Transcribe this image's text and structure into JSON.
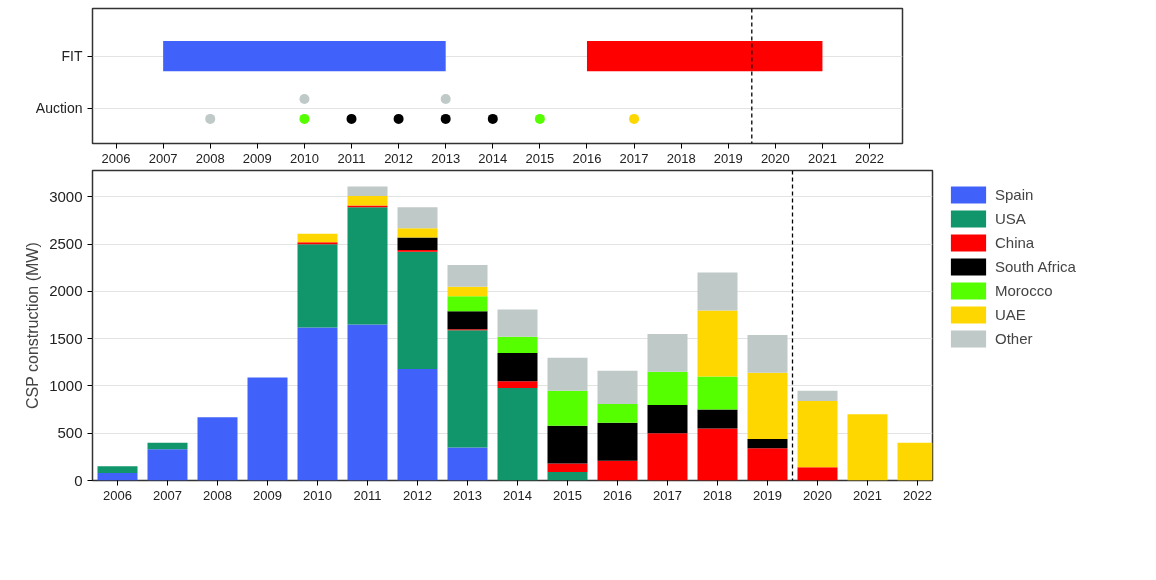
{
  "chart_data": [
    {
      "type": "bar",
      "orientation": "horizontal",
      "categories": [
        "FIT",
        "Auction"
      ],
      "xlim": [
        2005.5,
        2022.7
      ],
      "xticks": [
        2006,
        2007,
        2008,
        2009,
        2010,
        2011,
        2012,
        2013,
        2014,
        2015,
        2016,
        2017,
        2018,
        2019,
        2020,
        2021,
        2022
      ],
      "grid": "y",
      "marker": "circle",
      "ref_lines": [
        {
          "axis": "x",
          "value": 2019.5,
          "line_style": "dashed",
          "color": "#000000"
        }
      ],
      "series": [
        {
          "color": "#4062fa",
          "values": [
            6,
            null
          ],
          "base": [
            2007,
            null
          ]
        },
        {
          "color": "#ff0000",
          "values": [
            5,
            null
          ],
          "base": [
            2016,
            null
          ]
        },
        {
          "type": "scatter",
          "color": "#bfc9c7",
          "values": [
            null,
            2008
          ]
        },
        {
          "type": "scatter",
          "color": "#55ff00",
          "values": [
            null,
            2010
          ]
        },
        {
          "type": "scatter",
          "color": "#000000",
          "values": [
            null,
            2011
          ]
        },
        {
          "type": "scatter",
          "color": "#000000",
          "values": [
            null,
            2012
          ]
        },
        {
          "type": "scatter",
          "color": "#000000",
          "values": [
            null,
            2013
          ]
        },
        {
          "type": "scatter",
          "color": "#000000",
          "values": [
            null,
            2014
          ]
        },
        {
          "type": "scatter",
          "color": "#55ff00",
          "values": [
            null,
            2015
          ]
        },
        {
          "type": "scatter",
          "color": "#ffd700",
          "values": [
            null,
            2017
          ]
        },
        {
          "type": "scatter",
          "color": "#bfc9c7",
          "values": [
            null,
            2010
          ]
        },
        {
          "type": "scatter",
          "color": "#bfc9c7",
          "values": [
            null,
            2013
          ]
        }
      ]
    },
    {
      "type": "bar",
      "stacked": true,
      "ylabel": "CSP construction (MW)",
      "x": [
        2006,
        2007,
        2008,
        2009,
        2010,
        2011,
        2012,
        2013,
        2014,
        2015,
        2016,
        2017,
        2018,
        2019,
        2020,
        2021,
        2022
      ],
      "xlim": [
        2005.5,
        2022.3
      ],
      "xticks": [
        2006,
        2007,
        2008,
        2009,
        2010,
        2011,
        2012,
        2013,
        2014,
        2015,
        2016,
        2017,
        2018,
        2019,
        2020,
        2021,
        2022
      ],
      "ylim": [
        0,
        3280
      ],
      "yticks": [
        0,
        500,
        1000,
        1500,
        2000,
        2500,
        3000
      ],
      "grid": "y",
      "legend": "right",
      "ref_lines": [
        {
          "axis": "x",
          "value": 2019.5,
          "line_style": "dashed",
          "color": "#000000"
        }
      ],
      "series": [
        {
          "name": "Spain",
          "color": "#4062fa",
          "values": [
            80,
            330,
            670,
            1090,
            1620,
            1650,
            1180,
            350,
            null,
            null,
            null,
            null,
            null,
            null,
            null,
            null,
            null
          ]
        },
        {
          "name": "USA",
          "color": "#11956b",
          "values": [
            70,
            70,
            null,
            null,
            880,
            1240,
            1240,
            1240,
            980,
            90,
            null,
            null,
            null,
            null,
            null,
            null,
            null
          ]
        },
        {
          "name": "China",
          "color": "#ff0000",
          "values": [
            null,
            null,
            null,
            null,
            20,
            20,
            20,
            10,
            70,
            90,
            210,
            500,
            550,
            340,
            140,
            null,
            null
          ]
        },
        {
          "name": "South Africa",
          "color": "#000000",
          "values": [
            null,
            null,
            null,
            null,
            null,
            null,
            130,
            190,
            300,
            400,
            400,
            300,
            200,
            100,
            null,
            null,
            null
          ]
        },
        {
          "name": "Morocco",
          "color": "#55ff00",
          "values": [
            null,
            null,
            null,
            null,
            null,
            null,
            null,
            160,
            170,
            370,
            200,
            350,
            350,
            null,
            null,
            null,
            null
          ]
        },
        {
          "name": "UAE",
          "color": "#ffd700",
          "values": [
            null,
            null,
            null,
            null,
            90,
            100,
            100,
            100,
            null,
            null,
            null,
            null,
            700,
            700,
            700,
            700,
            400
          ]
        },
        {
          "name": "Other",
          "color": "#bfc9c7",
          "values": [
            null,
            null,
            null,
            null,
            null,
            100,
            220,
            230,
            290,
            350,
            350,
            400,
            400,
            400,
            110,
            null,
            null
          ]
        }
      ]
    }
  ]
}
